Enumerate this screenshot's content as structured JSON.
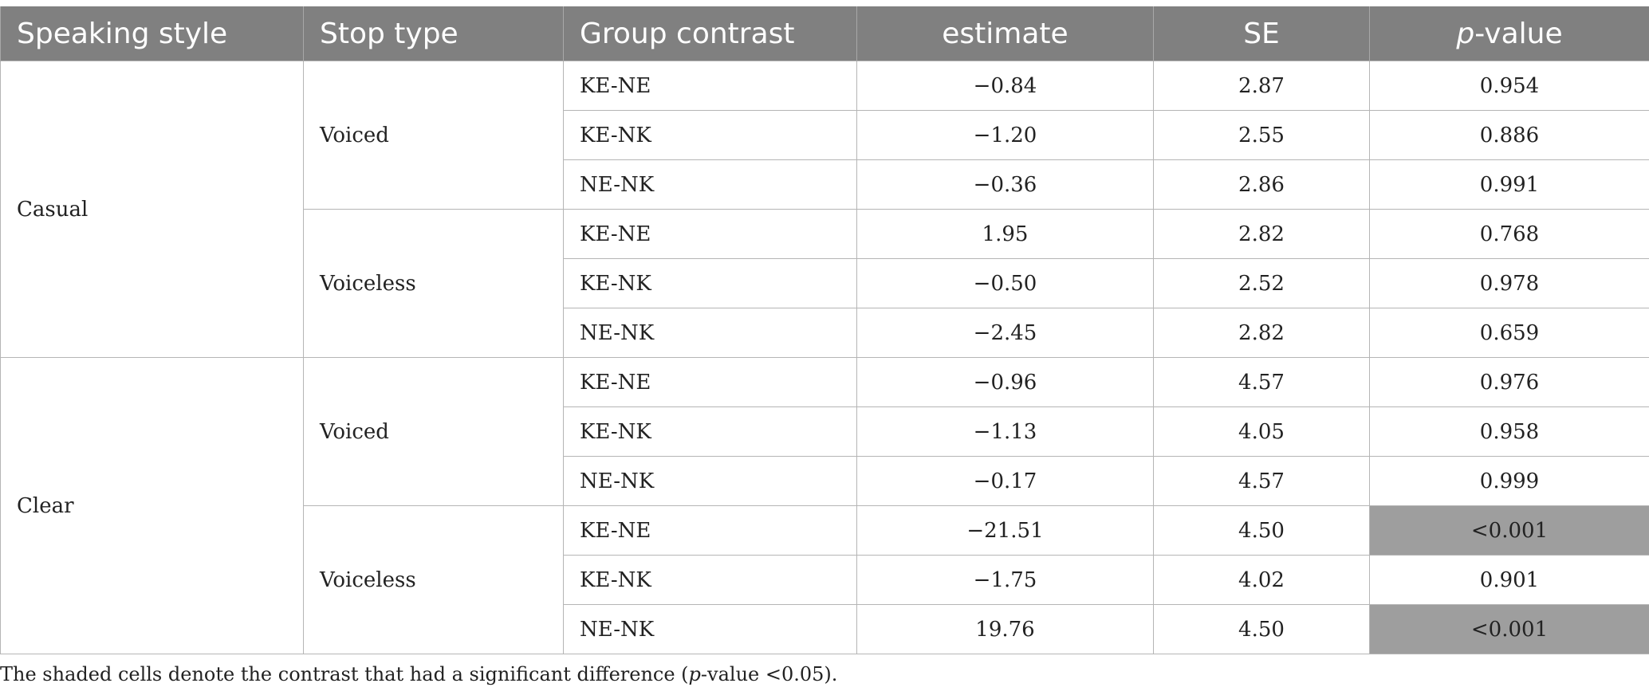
{
  "header": {
    "speaking_style": "Speaking style",
    "stop_type": "Stop type",
    "group_contrast": "Group contrast",
    "estimate": "estimate",
    "se": "SE",
    "p_italic": "p",
    "p_rest": "-value"
  },
  "styles": [
    {
      "label": "Casual",
      "stops": [
        {
          "label": "Voiced",
          "rows": [
            {
              "contrast": "KE-NE",
              "estimate": "−0.84",
              "se": "2.87",
              "p": "0.954"
            },
            {
              "contrast": "KE-NK",
              "estimate": "−1.20",
              "se": "2.55",
              "p": "0.886"
            },
            {
              "contrast": "NE-NK",
              "estimate": "−0.36",
              "se": "2.86",
              "p": "0.991"
            }
          ]
        },
        {
          "label": "Voiceless",
          "rows": [
            {
              "contrast": "KE-NE",
              "estimate": "1.95",
              "se": "2.82",
              "p": "0.768"
            },
            {
              "contrast": "KE-NK",
              "estimate": "−0.50",
              "se": "2.52",
              "p": "0.978"
            },
            {
              "contrast": "NE-NK",
              "estimate": "−2.45",
              "se": "2.82",
              "p": "0.659"
            }
          ]
        }
      ]
    },
    {
      "label": "Clear",
      "stops": [
        {
          "label": "Voiced",
          "rows": [
            {
              "contrast": "KE-NE",
              "estimate": "−0.96",
              "se": "4.57",
              "p": "0.976"
            },
            {
              "contrast": "KE-NK",
              "estimate": "−1.13",
              "se": "4.05",
              "p": "0.958"
            },
            {
              "contrast": "NE-NK",
              "estimate": "−0.17",
              "se": "4.57",
              "p": "0.999"
            }
          ]
        },
        {
          "label": "Voiceless",
          "rows": [
            {
              "contrast": "KE-NE",
              "estimate": "−21.51",
              "se": "4.50",
              "p": "<0.001",
              "shaded": true
            },
            {
              "contrast": "KE-NK",
              "estimate": "−1.75",
              "se": "4.02",
              "p": "0.901"
            },
            {
              "contrast": "NE-NK",
              "estimate": "19.76",
              "se": "4.50",
              "p": "<0.001",
              "shaded": true
            }
          ]
        }
      ]
    }
  ],
  "footnote": {
    "before": "The shaded cells denote the contrast that had a significant difference (",
    "italic": "p",
    "after": "-value <0.05)."
  },
  "colors": {
    "header_bg": "#808080",
    "header_text": "#ffffff",
    "shaded_cell": "#9e9e9e",
    "grid": "#b5b5b5"
  }
}
